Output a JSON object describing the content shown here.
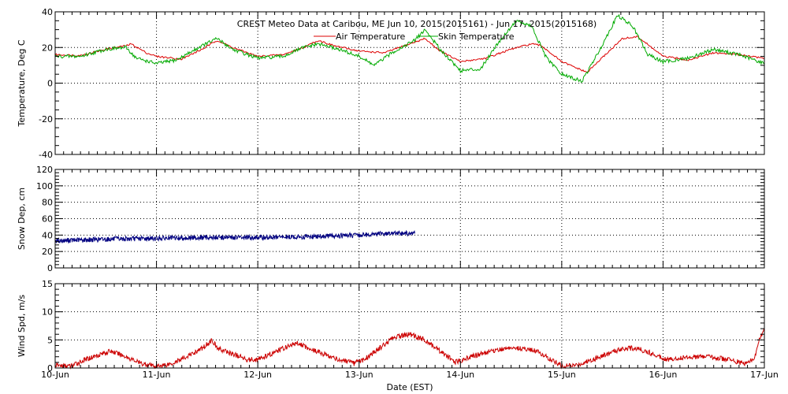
{
  "chart_data": {
    "title": "CREST Meteo Data at Caribou, ME   Jun 10, 2015(2015161) - Jun 17, 2015(2015168)",
    "xlabel": "Date (EST)",
    "x_ticks": [
      "10-Jun",
      "11-Jun",
      "12-Jun",
      "13-Jun",
      "14-Jun",
      "15-Jun",
      "16-Jun",
      "17-Jun"
    ],
    "xlim": [
      0,
      7
    ],
    "colors": {
      "air": "#dd0000",
      "skin": "#00aa00",
      "snow": "#000080",
      "wind": "#cc0000"
    },
    "panels": [
      {
        "type": "line",
        "ylabel": "Temperature, Deg C",
        "ylim": [
          -40,
          40
        ],
        "y_ticks": [
          -40,
          -20,
          0,
          20,
          40
        ],
        "grid": true,
        "legend": "top-center",
        "series": [
          {
            "name": "Air Temperature",
            "color_key": "air",
            "x": [
              0,
              0.25,
              0.5,
              0.7,
              0.75,
              0.9,
              1.0,
              1.25,
              1.45,
              1.6,
              1.75,
              2.0,
              2.25,
              2.45,
              2.6,
              2.75,
              3.0,
              3.25,
              3.45,
              3.65,
              3.8,
              4.0,
              4.25,
              4.5,
              4.7,
              4.8,
              5.0,
              5.25,
              5.45,
              5.6,
              5.75,
              6.0,
              6.25,
              6.5,
              6.75,
              7.0
            ],
            "y": [
              16,
              15.5,
              19,
              21,
              22,
              17,
              15,
              13.5,
              19,
              24,
              20,
              15,
              16,
              20,
              24,
              21,
              18,
              17,
              21,
              25,
              18,
              12,
              14,
              19,
              22,
              21,
              12,
              6,
              17,
              25,
              26,
              15,
              13,
              17,
              16,
              14
            ]
          },
          {
            "name": "Skin Temperature",
            "color_key": "skin",
            "x": [
              0,
              0.25,
              0.5,
              0.7,
              0.8,
              1.0,
              1.2,
              1.45,
              1.6,
              1.75,
              2.0,
              2.25,
              2.45,
              2.6,
              2.8,
              3.0,
              3.15,
              3.35,
              3.55,
              3.65,
              3.8,
              4.0,
              4.2,
              4.35,
              4.55,
              4.7,
              4.85,
              5.0,
              5.2,
              5.35,
              5.55,
              5.7,
              5.85,
              6.0,
              6.25,
              6.5,
              6.75,
              7.0
            ],
            "y": [
              15,
              15,
              19,
              20,
              14,
              11,
              13,
              21,
              25,
              19,
              14,
              15,
              20,
              22,
              19,
              15,
              10,
              18,
              24,
              30,
              19,
              7,
              8,
              21,
              35,
              32,
              14,
              5,
              1,
              16,
              38,
              32,
              16,
              12,
              14,
              19,
              16,
              11
            ]
          }
        ]
      },
      {
        "type": "line",
        "ylabel": "Snow Dep, cm",
        "ylim": [
          0,
          120
        ],
        "y_ticks": [
          0,
          20,
          40,
          60,
          80,
          100,
          120
        ],
        "grid": true,
        "series": [
          {
            "name": "",
            "color_key": "snow",
            "x": [
              0,
              0.5,
              1.0,
              1.5,
              2.0,
              2.5,
              3.0,
              3.3,
              3.55
            ],
            "y": [
              33,
              35,
              36,
              37,
              37,
              38,
              40,
              42,
              42
            ]
          }
        ]
      },
      {
        "type": "line",
        "ylabel": "Wind Spd, m/s",
        "ylim": [
          0,
          15
        ],
        "y_ticks": [
          0,
          5,
          10,
          15
        ],
        "grid": true,
        "series": [
          {
            "name": "",
            "color_key": "wind",
            "x": [
              0,
              0.15,
              0.3,
              0.45,
              0.55,
              0.7,
              0.85,
              1.0,
              1.15,
              1.3,
              1.45,
              1.55,
              1.6,
              1.75,
              1.9,
              2.0,
              2.1,
              2.25,
              2.4,
              2.5,
              2.65,
              2.8,
              2.95,
              3.05,
              3.2,
              3.35,
              3.5,
              3.65,
              3.8,
              3.95,
              4.1,
              4.3,
              4.45,
              4.6,
              4.75,
              4.9,
              5.0,
              5.15,
              5.3,
              5.45,
              5.6,
              5.75,
              5.9,
              6.05,
              6.25,
              6.45,
              6.65,
              6.8,
              6.9,
              6.95,
              7.0
            ],
            "y": [
              0.5,
              0.3,
              1.5,
              2.5,
              3,
              2,
              0.8,
              0.3,
              0.8,
              2,
              3.5,
              5,
              3.5,
              2.5,
              1.5,
              1.5,
              2.2,
              3.5,
              4.5,
              3.5,
              2.5,
              1.5,
              0.8,
              1.5,
              3.5,
              5.5,
              6,
              5,
              3,
              1,
              2,
              3,
              3.5,
              3.5,
              3,
              1.5,
              0.3,
              0.5,
              1.5,
              2.5,
              3.5,
              3.5,
              2.5,
              1.5,
              2,
              2,
              1.5,
              0.8,
              1.5,
              5,
              7
            ]
          }
        ]
      }
    ]
  }
}
